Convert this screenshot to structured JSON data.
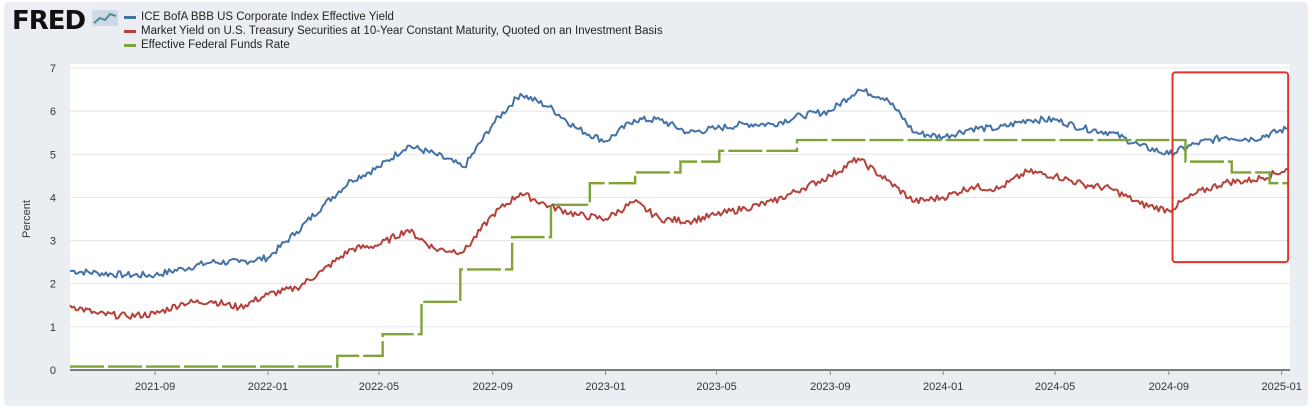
{
  "header": {
    "logo_text": "FRED",
    "logo_icon": "trend-line-icon"
  },
  "annotation": {
    "type": "highlight-box",
    "color": "#e0332b",
    "x_range": [
      "2024-09-05",
      "2025-01-08"
    ],
    "y_range": [
      2.5,
      6.9
    ]
  },
  "chart_data": {
    "type": "line",
    "xlabel": "",
    "ylabel": "Percent",
    "ylim": [
      0,
      7
    ],
    "xlim": [
      "2021-06-01",
      "2025-01-10"
    ],
    "y_ticks": [
      0,
      1,
      2,
      3,
      4,
      5,
      6,
      7
    ],
    "x_ticks": [
      "2021-09",
      "2022-01",
      "2022-05",
      "2022-09",
      "2023-01",
      "2023-05",
      "2023-09",
      "2024-01",
      "2024-05",
      "2024-09",
      "2025-01"
    ],
    "grid": true,
    "legend_placement": "top-left",
    "series": [
      {
        "name": "ICE BofA BBB US Corporate Index Effective Yield",
        "color": "#4572a7",
        "style": "solid",
        "points": [
          [
            "2021-06-01",
            2.3
          ],
          [
            "2021-07-01",
            2.25
          ],
          [
            "2021-08-01",
            2.2
          ],
          [
            "2021-09-01",
            2.2
          ],
          [
            "2021-10-01",
            2.35
          ],
          [
            "2021-11-01",
            2.5
          ],
          [
            "2021-12-01",
            2.5
          ],
          [
            "2022-01-01",
            2.6
          ],
          [
            "2022-02-01",
            3.2
          ],
          [
            "2022-03-01",
            3.8
          ],
          [
            "2022-04-01",
            4.4
          ],
          [
            "2022-05-01",
            4.7
          ],
          [
            "2022-06-01",
            5.2
          ],
          [
            "2022-07-01",
            5.0
          ],
          [
            "2022-08-01",
            4.7
          ],
          [
            "2022-09-01",
            5.7
          ],
          [
            "2022-10-01",
            6.4
          ],
          [
            "2022-11-01",
            6.1
          ],
          [
            "2022-12-01",
            5.6
          ],
          [
            "2023-01-01",
            5.3
          ],
          [
            "2023-02-01",
            5.8
          ],
          [
            "2023-03-01",
            5.8
          ],
          [
            "2023-04-01",
            5.5
          ],
          [
            "2023-05-01",
            5.6
          ],
          [
            "2023-06-01",
            5.7
          ],
          [
            "2023-07-01",
            5.7
          ],
          [
            "2023-08-01",
            5.9
          ],
          [
            "2023-09-01",
            6.0
          ],
          [
            "2023-10-01",
            6.5
          ],
          [
            "2023-11-01",
            6.3
          ],
          [
            "2023-12-01",
            5.5
          ],
          [
            "2024-01-01",
            5.4
          ],
          [
            "2024-02-01",
            5.6
          ],
          [
            "2024-03-01",
            5.6
          ],
          [
            "2024-04-01",
            5.8
          ],
          [
            "2024-05-01",
            5.8
          ],
          [
            "2024-06-01",
            5.6
          ],
          [
            "2024-07-01",
            5.5
          ],
          [
            "2024-08-01",
            5.2
          ],
          [
            "2024-09-01",
            5.0
          ],
          [
            "2024-10-01",
            5.25
          ],
          [
            "2024-11-01",
            5.4
          ],
          [
            "2024-12-01",
            5.35
          ],
          [
            "2025-01-08",
            5.6
          ]
        ]
      },
      {
        "name": "Market Yield on U.S. Treasury Securities at 10-Year Constant Maturity, Quoted on an Investment Basis",
        "color": "#b5423b",
        "style": "solid",
        "points": [
          [
            "2021-06-01",
            1.5
          ],
          [
            "2021-07-01",
            1.3
          ],
          [
            "2021-08-01",
            1.25
          ],
          [
            "2021-09-01",
            1.3
          ],
          [
            "2021-10-01",
            1.55
          ],
          [
            "2021-11-01",
            1.6
          ],
          [
            "2021-12-01",
            1.45
          ],
          [
            "2022-01-01",
            1.75
          ],
          [
            "2022-02-01",
            1.9
          ],
          [
            "2022-03-01",
            2.3
          ],
          [
            "2022-04-01",
            2.8
          ],
          [
            "2022-05-01",
            2.9
          ],
          [
            "2022-06-01",
            3.25
          ],
          [
            "2022-07-01",
            2.8
          ],
          [
            "2022-08-01",
            2.75
          ],
          [
            "2022-09-01",
            3.6
          ],
          [
            "2022-10-01",
            4.1
          ],
          [
            "2022-11-01",
            3.8
          ],
          [
            "2022-12-01",
            3.6
          ],
          [
            "2023-01-01",
            3.5
          ],
          [
            "2023-02-01",
            3.9
          ],
          [
            "2023-03-01",
            3.5
          ],
          [
            "2023-04-01",
            3.45
          ],
          [
            "2023-05-01",
            3.6
          ],
          [
            "2023-06-01",
            3.75
          ],
          [
            "2023-07-01",
            3.9
          ],
          [
            "2023-08-01",
            4.2
          ],
          [
            "2023-09-01",
            4.5
          ],
          [
            "2023-10-01",
            4.9
          ],
          [
            "2023-11-01",
            4.4
          ],
          [
            "2023-12-01",
            3.9
          ],
          [
            "2024-01-01",
            4.0
          ],
          [
            "2024-02-01",
            4.25
          ],
          [
            "2024-03-01",
            4.2
          ],
          [
            "2024-04-01",
            4.6
          ],
          [
            "2024-05-01",
            4.5
          ],
          [
            "2024-06-01",
            4.3
          ],
          [
            "2024-07-01",
            4.2
          ],
          [
            "2024-08-01",
            3.85
          ],
          [
            "2024-09-01",
            3.7
          ],
          [
            "2024-10-01",
            4.1
          ],
          [
            "2024-11-01",
            4.35
          ],
          [
            "2024-12-01",
            4.4
          ],
          [
            "2025-01-08",
            4.65
          ]
        ]
      },
      {
        "name": "Effective Federal Funds Rate",
        "color": "#7fa437",
        "style": "step-dashed",
        "points": [
          [
            "2021-06-01",
            0.08
          ],
          [
            "2022-03-17",
            0.33
          ],
          [
            "2022-05-05",
            0.83
          ],
          [
            "2022-06-16",
            1.58
          ],
          [
            "2022-07-28",
            2.33
          ],
          [
            "2022-09-22",
            3.08
          ],
          [
            "2022-11-03",
            3.83
          ],
          [
            "2022-12-15",
            4.33
          ],
          [
            "2023-02-02",
            4.58
          ],
          [
            "2023-03-23",
            4.83
          ],
          [
            "2023-05-04",
            5.08
          ],
          [
            "2023-07-27",
            5.33
          ],
          [
            "2024-09-19",
            4.83
          ],
          [
            "2024-11-08",
            4.58
          ],
          [
            "2024-12-19",
            4.33
          ],
          [
            "2025-01-08",
            4.33
          ]
        ]
      }
    ]
  }
}
